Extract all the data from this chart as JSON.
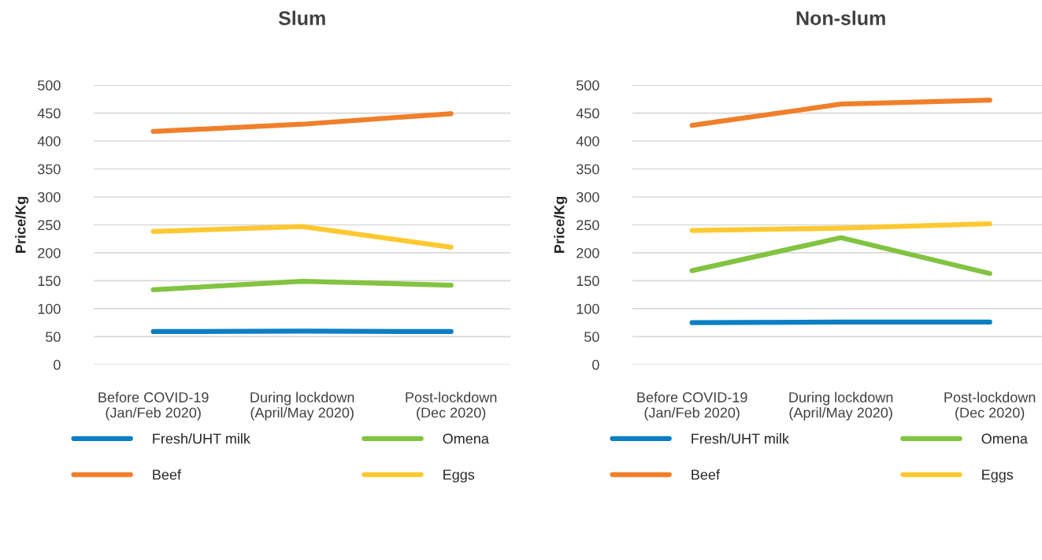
{
  "chart_data": [
    {
      "type": "line",
      "title": "Slum",
      "ylabel": "Price/Kg",
      "categories": [
        "Before COVID-19\n(Jan/Feb 2020)",
        "During lockdown\n(April/May 2020)",
        "Post-lockdown\n(Dec 2020)"
      ],
      "ylim": [
        0,
        500
      ],
      "yticks": [
        0,
        50,
        100,
        150,
        200,
        250,
        300,
        350,
        400,
        450,
        500
      ],
      "grid": "y",
      "legend": "bottom",
      "marker": "none",
      "line_style": "solid",
      "series": [
        {
          "name": "Fresh/UHT milk",
          "color": "#0b7fc4",
          "values": [
            59,
            60,
            59
          ]
        },
        {
          "name": "Beef",
          "color": "#f07f2b",
          "values": [
            417,
            430,
            449
          ]
        },
        {
          "name": "Omena",
          "color": "#82c341",
          "values": [
            134,
            149,
            142
          ]
        },
        {
          "name": "Eggs",
          "color": "#fdc931",
          "values": [
            238,
            247,
            210
          ]
        }
      ]
    },
    {
      "type": "line",
      "title": "Non-slum",
      "ylabel": "Price/Kg",
      "categories": [
        "Before COVID-19\n(Jan/Feb 2020)",
        "During lockdown\n(April/May 2020)",
        "Post-lockdown\n(Dec 2020)"
      ],
      "ylim": [
        0,
        500
      ],
      "yticks": [
        0,
        50,
        100,
        150,
        200,
        250,
        300,
        350,
        400,
        450,
        500
      ],
      "grid": "y",
      "legend": "bottom",
      "marker": "none",
      "line_style": "solid",
      "series": [
        {
          "name": "Fresh/UHT milk",
          "color": "#0b7fc4",
          "values": [
            75,
            76,
            76
          ]
        },
        {
          "name": "Beef",
          "color": "#f07f2b",
          "values": [
            428,
            466,
            473
          ]
        },
        {
          "name": "Omena",
          "color": "#82c341",
          "values": [
            168,
            227,
            163
          ]
        },
        {
          "name": "Eggs",
          "color": "#fdc931",
          "values": [
            240,
            244,
            252
          ]
        }
      ]
    }
  ]
}
